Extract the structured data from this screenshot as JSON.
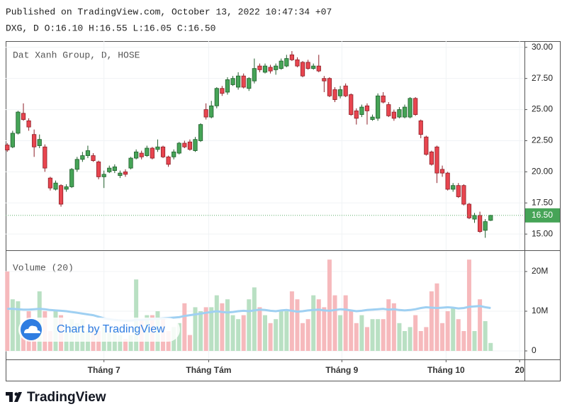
{
  "header": {
    "published": "Published on TradingView.com, October 13, 2022 10:47:34 +07",
    "ohlc": "DXG, D O:16.10 H:16.55 L:16.05 C:16.50"
  },
  "watermark": "Chart by TradingView",
  "footer": "TradingView",
  "chart_data": [
    {
      "type": "candlestick",
      "title": "Dat Xanh Group, D, HOSE",
      "up_color": "#46a457",
      "down_color": "#e8454f",
      "open": [
        22.15,
        22.0,
        23.1,
        24.7,
        24.1,
        23.0,
        22.1,
        22.0,
        19.5,
        18.6,
        18.9,
        18.6,
        18.8,
        20.2,
        21.0,
        21.3,
        21.3,
        20.8,
        19.6,
        20.0,
        20.1,
        19.7,
        20.0,
        20.3,
        21.1,
        21.5,
        21.3,
        21.9,
        21.8,
        22.0,
        21.2,
        21.2,
        21.5,
        22.3,
        22.4,
        21.7,
        22.5,
        25.0,
        24.4,
        25.3,
        26.7,
        26.4,
        27.0,
        26.8,
        27.7,
        26.7,
        27.3,
        28.5,
        28.0,
        28.4,
        28.2,
        28.3,
        28.5,
        29.4,
        29.0,
        28.8,
        28.8,
        28.3,
        28.5,
        27.5,
        27.5,
        26.6,
        26.1,
        26.9,
        26.2,
        24.9,
        24.6,
        25.3,
        24.2,
        24.3,
        26.1,
        25.4,
        24.8,
        24.4,
        24.4,
        24.4,
        25.9,
        24.1,
        22.8,
        21.6,
        22.0,
        20.2,
        19.9,
        18.6,
        18.9,
        18.9,
        17.4,
        16.2,
        16.5,
        15.3,
        16.1
      ],
      "high": [
        22.3,
        23.3,
        24.9,
        25.5,
        24.3,
        23.4,
        23.0,
        22.2,
        19.6,
        19.3,
        19.0,
        19.0,
        20.3,
        21.2,
        21.6,
        22.1,
        21.5,
        20.9,
        20.1,
        20.5,
        20.6,
        20.1,
        20.2,
        21.2,
        21.8,
        21.7,
        22.1,
        22.0,
        22.6,
        22.1,
        21.3,
        21.8,
        22.4,
        22.5,
        22.6,
        22.8,
        23.9,
        25.5,
        25.7,
        26.8,
        26.9,
        27.6,
        27.7,
        28.0,
        27.9,
        27.6,
        29.1,
        28.7,
        28.7,
        28.6,
        28.7,
        29.1,
        29.4,
        29.7,
        29.2,
        28.9,
        29.0,
        28.7,
        29.4,
        27.7,
        27.6,
        26.8,
        26.9,
        27.1,
        26.3,
        25.1,
        25.4,
        25.5,
        24.6,
        26.3,
        26.4,
        25.6,
        25.0,
        25.2,
        25.4,
        26.0,
        26.0,
        24.2,
        22.9,
        21.7,
        22.1,
        20.5,
        20.0,
        19.1,
        19.1,
        19.0,
        17.5,
        16.7,
        16.8,
        16.2,
        16.55
      ],
      "low": [
        21.6,
        21.9,
        23.0,
        24.1,
        23.3,
        21.2,
        21.9,
        20.0,
        18.5,
        18.5,
        17.2,
        18.4,
        18.7,
        20.0,
        20.8,
        21.1,
        20.8,
        19.4,
        18.7,
        19.9,
        19.9,
        19.5,
        19.6,
        20.2,
        21.0,
        21.0,
        21.2,
        21.0,
        21.6,
        21.1,
        20.4,
        21.0,
        21.4,
        21.9,
        21.7,
        21.6,
        22.4,
        24.2,
        24.3,
        25.1,
        26.1,
        26.2,
        26.9,
        26.6,
        26.7,
        26.5,
        27.1,
        28.0,
        27.9,
        27.9,
        27.8,
        28.2,
        28.4,
        28.9,
        28.4,
        27.6,
        28.2,
        28.2,
        28.0,
        26.4,
        26.0,
        25.6,
        25.9,
        26.0,
        24.5,
        23.8,
        24.4,
        23.8,
        24.1,
        24.1,
        25.5,
        24.4,
        24.1,
        24.3,
        24.3,
        24.3,
        24.5,
        22.7,
        21.3,
        20.5,
        19.1,
        19.6,
        18.5,
        18.4,
        17.9,
        17.3,
        16.2,
        15.9,
        15.1,
        14.7,
        16.05
      ],
      "close": [
        21.75,
        23.1,
        24.8,
        24.2,
        23.6,
        22.0,
        22.6,
        20.3,
        18.7,
        19.1,
        17.4,
        18.8,
        20.2,
        21.0,
        21.3,
        21.7,
        20.9,
        19.6,
        19.8,
        20.3,
        20.4,
        19.9,
        19.8,
        21.1,
        21.6,
        21.2,
        21.9,
        21.1,
        22.0,
        21.2,
        20.6,
        21.6,
        22.3,
        22.0,
        21.8,
        22.6,
        23.8,
        24.4,
        25.3,
        26.7,
        26.3,
        27.4,
        27.5,
        27.7,
        26.8,
        27.5,
        28.3,
        28.2,
        28.5,
        28.1,
        28.5,
        28.9,
        29.1,
        29.0,
        28.5,
        27.7,
        28.3,
        28.5,
        28.1,
        27.3,
        26.1,
        25.8,
        26.6,
        26.1,
        24.6,
        24.3,
        25.2,
        24.9,
        24.4,
        26.1,
        25.6,
        24.5,
        24.3,
        25.0,
        25.2,
        25.9,
        24.6,
        23.0,
        21.4,
        20.6,
        19.9,
        19.9,
        18.6,
        18.9,
        18.0,
        17.4,
        16.3,
        16.5,
        15.2,
        16.0,
        16.5
      ],
      "last_price": {
        "value": 16.5,
        "label": "16.50"
      },
      "xlim": [
        -0.3,
        96.3
      ],
      "ylim": [
        13.7,
        30.5
      ],
      "yticks": [
        {
          "value": 15,
          "label": "15.00"
        },
        {
          "value": 17.5,
          "label": "17.50"
        },
        {
          "value": 20,
          "label": "20.00"
        },
        {
          "value": 22.5,
          "label": "22.50"
        },
        {
          "value": 25,
          "label": "25.00"
        },
        {
          "value": 27.5,
          "label": "27.50"
        },
        {
          "value": 30,
          "label": "30.00"
        }
      ],
      "grid": true
    },
    {
      "type": "volume",
      "title": "Volume (20)",
      "up_color": "#b9e0c3",
      "down_color": "#f6b9bc",
      "ma_color": "#9fd0f2",
      "values": [
        20000000,
        13000000,
        12500000,
        6000000,
        10000000,
        7500000,
        15000000,
        10000000,
        5000000,
        10000000,
        9000000,
        5000000,
        8000000,
        7000000,
        8000000,
        5000000,
        6000000,
        5000000,
        6000000,
        4500000,
        5000000,
        4000000,
        3000000,
        4000000,
        18000000,
        8000000,
        9000000,
        9000000,
        10000000,
        8000000,
        5000000,
        6000000,
        7000000,
        12000000,
        4000000,
        11000000,
        10000000,
        11000000,
        11000000,
        14000000,
        12000000,
        13000000,
        9000000,
        8000000,
        9000000,
        13000000,
        16000000,
        11000000,
        9000000,
        7000000,
        8000000,
        10000000,
        10000000,
        15000000,
        13000000,
        7000000,
        8000000,
        14000000,
        13000000,
        11000000,
        23000000,
        14000000,
        9000000,
        14000000,
        10000000,
        7000000,
        9000000,
        6000000,
        8000000,
        8000000,
        8000000,
        13000000,
        12000000,
        7000000,
        5000000,
        6000000,
        9000000,
        5000000,
        6000000,
        15000000,
        17000000,
        7000000,
        10000000,
        11000000,
        8000000,
        5000000,
        23000000,
        5000000,
        13000000,
        7500000,
        2000000
      ],
      "ma_values": [
        10600000,
        10600000,
        10500000,
        10400000,
        10400000,
        10500000,
        10600000,
        10500000,
        10300000,
        10200000,
        10100000,
        10000000,
        9800000,
        9600000,
        9400000,
        9200000,
        9000000,
        8600000,
        8200000,
        8000000,
        7800000,
        7700000,
        7600000,
        7600000,
        7800000,
        7800000,
        7900000,
        8000000,
        8100000,
        8200000,
        8300000,
        8400000,
        8500000,
        8800000,
        9000000,
        9200000,
        9400000,
        9600000,
        9800000,
        10000000,
        9800000,
        9700000,
        9800000,
        10000000,
        10100000,
        10000000,
        10200000,
        10400000,
        10300000,
        10100000,
        10000000,
        10200000,
        10300000,
        10100000,
        9900000,
        10000000,
        10200000,
        10300000,
        10400000,
        10200000,
        10100000,
        10300000,
        10500000,
        10400000,
        10200000,
        10000000,
        10100000,
        10300000,
        10400000,
        10500000,
        10600000,
        10400000,
        10500000,
        10300000,
        10200000,
        10300000,
        10500000,
        10800000,
        11000000,
        10900000,
        10800000,
        10900000,
        11000000,
        10900000,
        10700000,
        10800000,
        11100000,
        11200000,
        11300000,
        11000000,
        10800000
      ],
      "xlim": [
        -0.3,
        96.3
      ],
      "xticks": [
        {
          "value": 18,
          "label": "Tháng 7"
        },
        {
          "value": 37.5,
          "label": "Tháng Tám"
        },
        {
          "value": 62.3,
          "label": "Tháng 9"
        },
        {
          "value": 81.7,
          "label": "Tháng 10"
        },
        {
          "value": 95.4,
          "label": "20"
        }
      ],
      "ylim": [
        0,
        25000000
      ],
      "yticks": [
        0,
        {
          "value": 10000000,
          "label": "10M"
        },
        {
          "value": 20000000,
          "label": "20M"
        }
      ],
      "grid": true
    }
  ]
}
